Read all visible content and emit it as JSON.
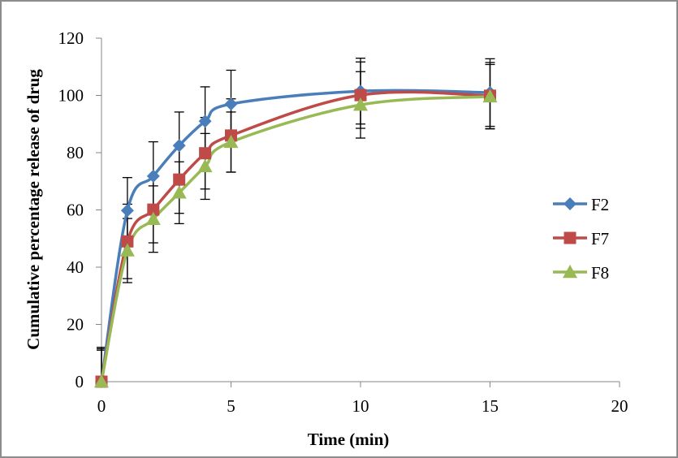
{
  "chart_data": {
    "type": "line",
    "title": "",
    "xlabel": "Time (min)",
    "ylabel": "Cumulative percentage release of drug",
    "xlim": [
      0,
      20
    ],
    "ylim": [
      0,
      120
    ],
    "xticks": [
      0,
      5,
      10,
      15,
      20
    ],
    "yticks": [
      0,
      20,
      40,
      60,
      80,
      100,
      120
    ],
    "xtick_labels": [
      "0",
      "5",
      "10",
      "15",
      "20"
    ],
    "ytick_labels": [
      "0",
      "20",
      "40",
      "60",
      "80",
      "100",
      "120"
    ],
    "grid": false,
    "legend_position": "right",
    "smooth": true,
    "x": [
      0,
      1,
      2,
      3,
      4,
      5,
      10,
      15
    ],
    "series": [
      {
        "name": "F2",
        "color": "#4A7EBB",
        "marker": "diamond",
        "values": [
          0,
          59.8,
          71.8,
          82.5,
          91.0,
          97.0,
          101.5,
          101.0
        ],
        "errors": [
          12,
          11.5,
          12,
          11.7,
          12,
          11.8,
          11.5,
          11.8
        ]
      },
      {
        "name": "F7",
        "color": "#BE4B48",
        "marker": "square",
        "values": [
          0,
          49.0,
          60.1,
          70.6,
          79.8,
          86.0,
          100.1,
          99.9
        ],
        "errors": [
          11.5,
          13,
          11.6,
          11.8,
          12.5,
          12.8,
          11.6,
          11.6
        ]
      },
      {
        "name": "F8",
        "color": "#98B954",
        "marker": "triangle",
        "values": [
          0,
          45.8,
          56.8,
          66.0,
          75.2,
          83.7,
          96.7,
          99.6
        ],
        "errors": [
          11,
          11.2,
          11.6,
          10.8,
          11.5,
          10.5,
          11.6,
          11.2
        ]
      }
    ]
  }
}
